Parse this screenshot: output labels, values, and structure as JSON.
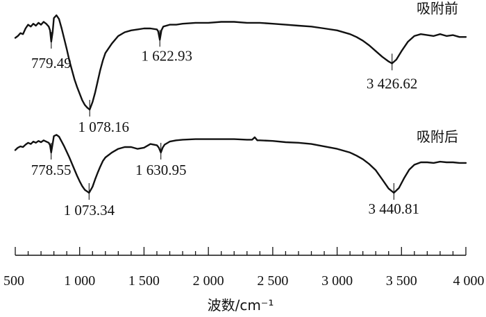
{
  "chart_data": {
    "type": "line",
    "title": "",
    "xlabel": "波数/cm⁻¹",
    "ylabel": "",
    "xlim": [
      500,
      4000
    ],
    "x_ticks": [
      {
        "value": 500,
        "label": "500"
      },
      {
        "value": 1000,
        "label": "1 000"
      },
      {
        "value": 1500,
        "label": "1 500"
      },
      {
        "value": 2000,
        "label": "2 000"
      },
      {
        "value": 2500,
        "label": "2 500"
      },
      {
        "value": 3000,
        "label": "3 000"
      },
      {
        "value": 3500,
        "label": "3 500"
      },
      {
        "value": 4000,
        "label": "4 000"
      }
    ],
    "grid": false,
    "y_units": "relative transmittance (curves vertically offset, no y axis shown)",
    "series": [
      {
        "name": "吸附前",
        "color": "#111111",
        "x": [
          500,
          520,
          540,
          560,
          580,
          600,
          620,
          640,
          660,
          680,
          700,
          720,
          740,
          760,
          770,
          779.49,
          790,
          800,
          820,
          840,
          860,
          880,
          900,
          920,
          940,
          960,
          980,
          1000,
          1020,
          1040,
          1060,
          1078.16,
          1100,
          1120,
          1140,
          1160,
          1180,
          1200,
          1250,
          1300,
          1350,
          1400,
          1450,
          1500,
          1550,
          1600,
          1610,
          1622.93,
          1635,
          1650,
          1700,
          1750,
          1800,
          1900,
          2000,
          2100,
          2200,
          2300,
          2400,
          2500,
          2600,
          2700,
          2800,
          2900,
          3000,
          3100,
          3150,
          3200,
          3250,
          3300,
          3350,
          3400,
          3426.62,
          3460,
          3500,
          3550,
          3600,
          3650,
          3700,
          3750,
          3800,
          3850,
          3900,
          3950,
          4000
        ],
        "values": [
          0.76,
          0.78,
          0.81,
          0.8,
          0.86,
          0.9,
          0.88,
          0.91,
          0.89,
          0.92,
          0.9,
          0.93,
          0.91,
          0.88,
          0.84,
          0.72,
          0.82,
          0.97,
          1.0,
          0.96,
          0.86,
          0.75,
          0.64,
          0.52,
          0.42,
          0.32,
          0.24,
          0.17,
          0.1,
          0.05,
          0.02,
          0.0,
          0.08,
          0.18,
          0.3,
          0.42,
          0.52,
          0.6,
          0.7,
          0.78,
          0.82,
          0.84,
          0.85,
          0.86,
          0.86,
          0.85,
          0.83,
          0.74,
          0.84,
          0.88,
          0.9,
          0.9,
          0.91,
          0.92,
          0.92,
          0.93,
          0.93,
          0.92,
          0.92,
          0.91,
          0.9,
          0.89,
          0.88,
          0.86,
          0.84,
          0.8,
          0.77,
          0.73,
          0.68,
          0.62,
          0.56,
          0.51,
          0.49,
          0.53,
          0.62,
          0.72,
          0.78,
          0.8,
          0.79,
          0.78,
          0.8,
          0.78,
          0.79,
          0.77,
          0.77
        ],
        "annotations": [
          {
            "x": 779.49,
            "label": "779.49"
          },
          {
            "x": 1078.16,
            "label": "1 078.16"
          },
          {
            "x": 1622.93,
            "label": "1 622.93"
          },
          {
            "x": 3426.62,
            "label": "3 426.62"
          }
        ]
      },
      {
        "name": "吸附后",
        "color": "#111111",
        "x": [
          500,
          520,
          540,
          560,
          580,
          600,
          620,
          640,
          660,
          680,
          700,
          720,
          740,
          760,
          770,
          778.55,
          790,
          800,
          820,
          840,
          860,
          880,
          900,
          920,
          940,
          960,
          980,
          1000,
          1020,
          1040,
          1060,
          1073.34,
          1100,
          1120,
          1140,
          1160,
          1180,
          1200,
          1250,
          1300,
          1350,
          1400,
          1450,
          1500,
          1550,
          1600,
          1615,
          1630.95,
          1645,
          1660,
          1700,
          1750,
          1800,
          1900,
          2000,
          2100,
          2200,
          2300,
          2340,
          2360,
          2380,
          2400,
          2500,
          2600,
          2700,
          2800,
          2900,
          3000,
          3100,
          3150,
          3200,
          3250,
          3300,
          3350,
          3400,
          3440.81,
          3480,
          3520,
          3560,
          3600,
          3650,
          3700,
          3750,
          3800,
          3850,
          3900,
          3950,
          4000
        ],
        "values": [
          0.7,
          0.74,
          0.76,
          0.75,
          0.79,
          0.82,
          0.8,
          0.84,
          0.82,
          0.85,
          0.83,
          0.86,
          0.84,
          0.82,
          0.78,
          0.66,
          0.8,
          0.93,
          0.95,
          0.92,
          0.84,
          0.76,
          0.67,
          0.58,
          0.48,
          0.38,
          0.28,
          0.19,
          0.11,
          0.05,
          0.02,
          0.0,
          0.1,
          0.22,
          0.33,
          0.43,
          0.52,
          0.58,
          0.66,
          0.72,
          0.75,
          0.75,
          0.72,
          0.74,
          0.8,
          0.78,
          0.74,
          0.66,
          0.74,
          0.79,
          0.84,
          0.86,
          0.87,
          0.88,
          0.88,
          0.88,
          0.88,
          0.87,
          0.87,
          0.91,
          0.86,
          0.86,
          0.85,
          0.83,
          0.82,
          0.8,
          0.76,
          0.72,
          0.66,
          0.61,
          0.55,
          0.47,
          0.37,
          0.22,
          0.07,
          0.0,
          0.08,
          0.24,
          0.38,
          0.46,
          0.5,
          0.5,
          0.49,
          0.51,
          0.5,
          0.5,
          0.49,
          0.49
        ],
        "annotations": [
          {
            "x": 778.55,
            "label": "778.55"
          },
          {
            "x": 1073.34,
            "label": "1 073.34"
          },
          {
            "x": 1630.95,
            "label": "1 630.95"
          },
          {
            "x": 3440.81,
            "label": "3 440.81"
          }
        ]
      }
    ]
  }
}
